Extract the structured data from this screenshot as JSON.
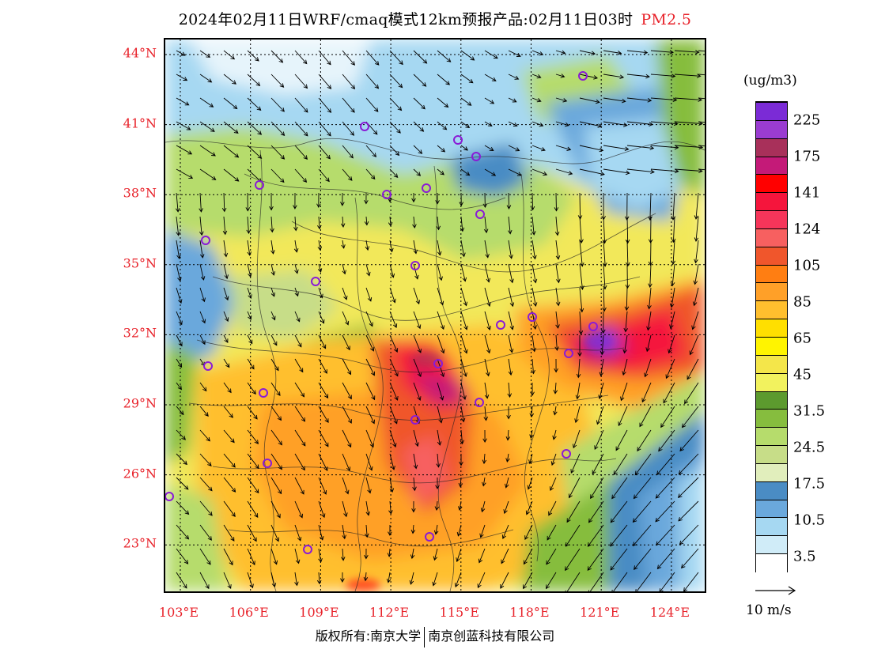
{
  "header": {
    "title": "2024年02月11日WRF/cmaq模式12km预报产品:02月11日03时",
    "variable": "PM2.5"
  },
  "axes": {
    "lat_labels": [
      "44°N",
      "41°N",
      "38°N",
      "35°N",
      "32°N",
      "29°N",
      "26°N",
      "23°N"
    ],
    "lon_labels": [
      "103°E",
      "106°E",
      "109°E",
      "112°E",
      "115°E",
      "118°E",
      "121°E",
      "124°E"
    ]
  },
  "colorbar": {
    "units": "(ug/m3)",
    "colors": [
      "#7b2bd6",
      "#9a3cd1",
      "#a8305a",
      "#c41a78",
      "#ff0000",
      "#f5153c",
      "#f6355a",
      "#f76060",
      "#f0562c",
      "#ff7e12",
      "#ffa028",
      "#ffbf2e",
      "#ffdf00",
      "#fff400",
      "#f4e64a",
      "#f2f25e",
      "#5c9a2e",
      "#86bd3e",
      "#b6dc6c",
      "#c7dd88",
      "#e1eebc",
      "#4a8cc4",
      "#6aa8dc",
      "#a6d8f2",
      "#d0ecf8",
      "#ffffff"
    ],
    "labels": [
      "225",
      "175",
      "141",
      "124",
      "105",
      "85",
      "65",
      "45",
      "31.5",
      "24.5",
      "17.5",
      "10.5",
      "3.5"
    ]
  },
  "vector_reference": {
    "label": "10 m/s"
  },
  "markers_label": "city markers",
  "footer": {
    "copyright": "版权所有:南京大学",
    "company": "南京创蓝科技有限公司"
  }
}
